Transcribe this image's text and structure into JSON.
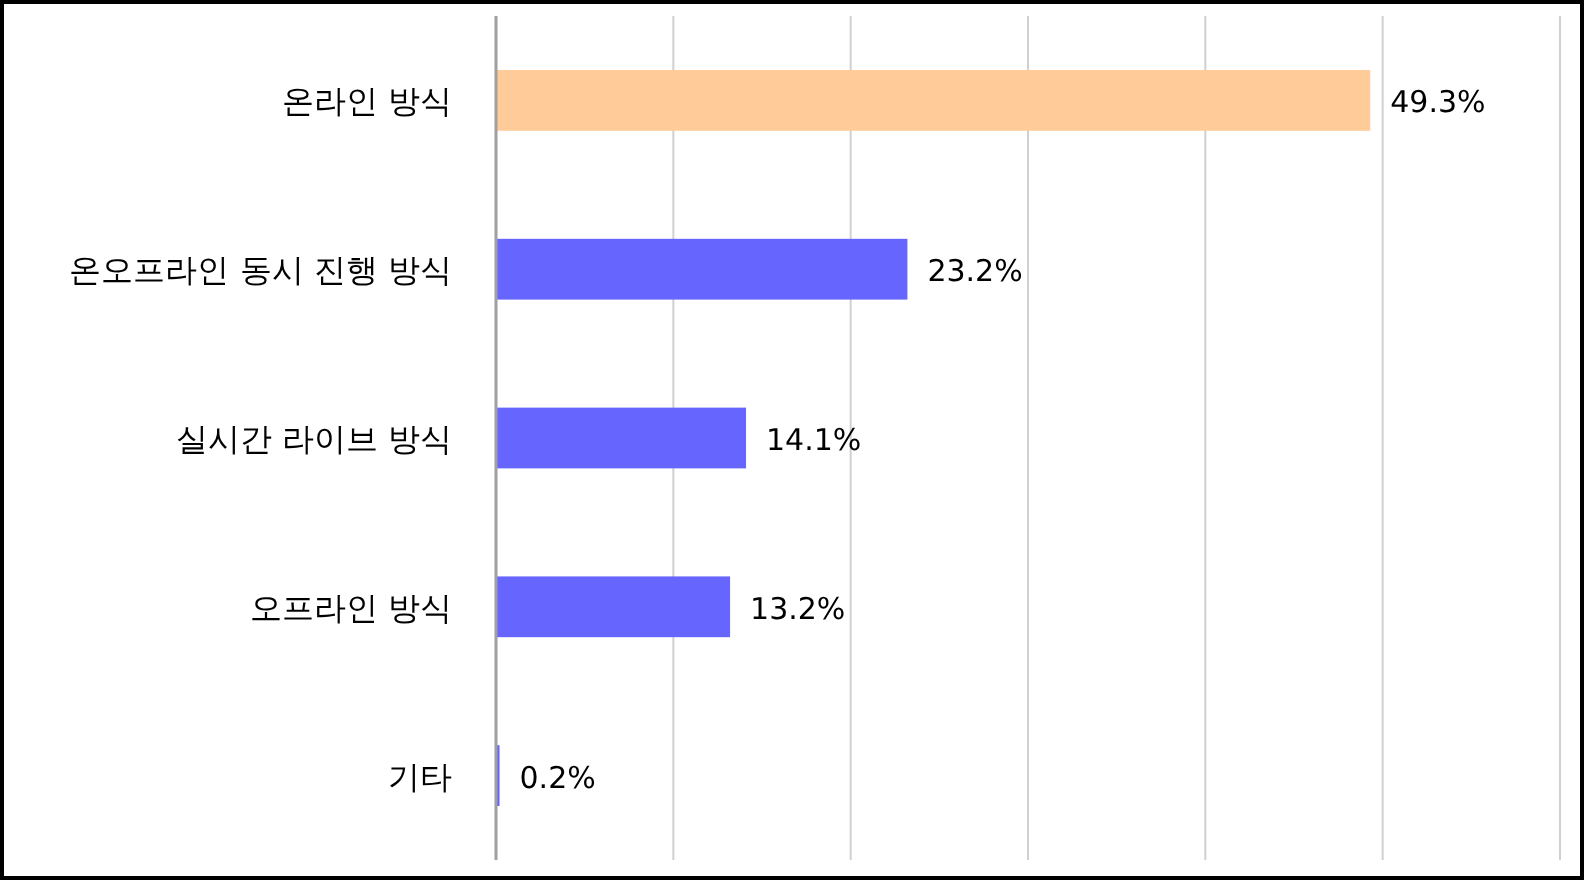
{
  "chart_data": {
    "type": "bar",
    "orientation": "horizontal",
    "categories": [
      "온라인 방식",
      "온오프라인 동시 진행 방식",
      "실시간 라이브 방식",
      "오프라인 방식",
      "기타"
    ],
    "values": [
      49.3,
      23.2,
      14.1,
      13.2,
      0.2
    ],
    "colors": [
      "#ffcc99",
      "#6666ff",
      "#6666ff",
      "#6666ff",
      "#6666ff"
    ],
    "value_labels": [
      "49.3%",
      "23.2%",
      "14.1%",
      "13.2%",
      "0.2%"
    ],
    "xlim": [
      0,
      60
    ],
    "xticks": [
      {
        "value": 0,
        "label": null
      },
      {
        "value": 10,
        "label": null
      },
      {
        "value": 20,
        "label": null
      },
      {
        "value": 30,
        "label": null
      },
      {
        "value": 40,
        "label": null
      },
      {
        "value": 50,
        "label": null
      },
      {
        "value": 60,
        "label": null
      }
    ],
    "tick_labels": "y",
    "grid": "x"
  }
}
